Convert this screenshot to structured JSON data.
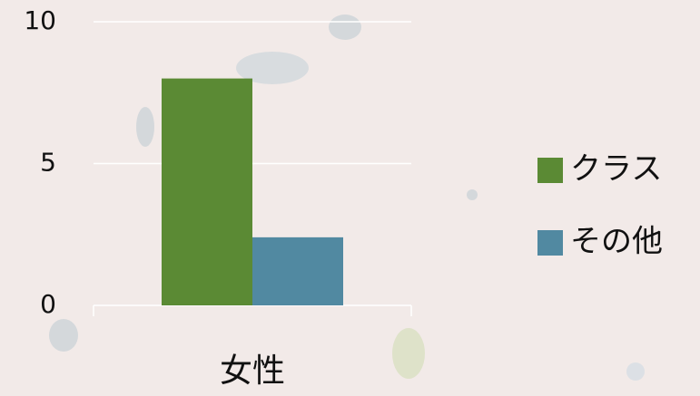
{
  "chart_data": {
    "type": "bar",
    "categories": [
      "女性"
    ],
    "series": [
      {
        "name": "クラス",
        "color": "#5b8a34",
        "values": [
          8
        ]
      },
      {
        "name": "その他",
        "color": "#5189a1",
        "values": [
          2.4
        ]
      }
    ],
    "ylim": [
      0,
      10
    ],
    "yticks": [
      0,
      5,
      10
    ],
    "grid": true,
    "legend": "right"
  }
}
